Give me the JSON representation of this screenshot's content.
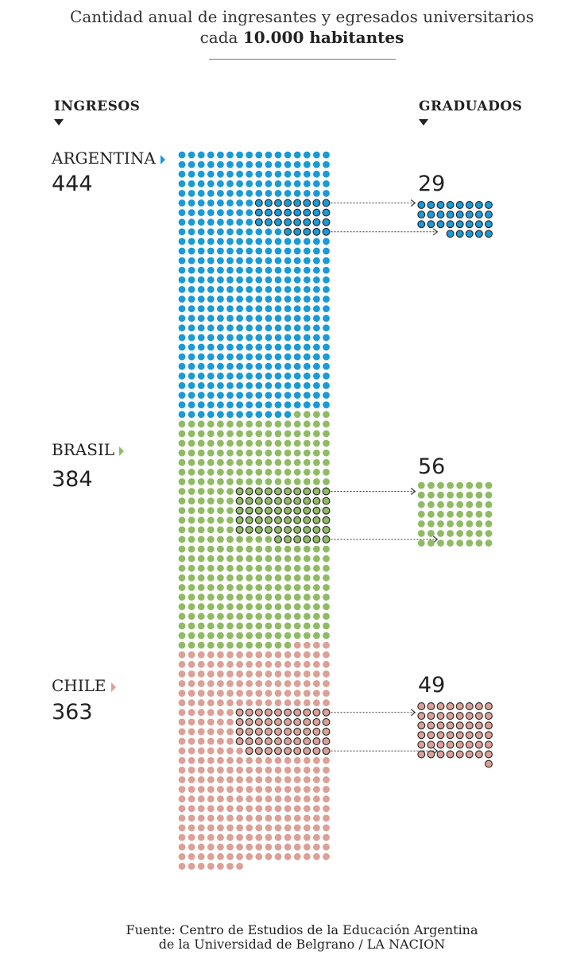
{
  "title": {
    "line1": "Cantidad anual de ingresantes y egresados universitarios",
    "line2_prefix": "cada ",
    "line2_bold": "10.000 habitantes"
  },
  "headers": {
    "ingresos": "INGRESOS",
    "graduados": "GRADUADOS"
  },
  "source": {
    "line1": "Fuente: Centro de Estudios de la Educación Argentina",
    "line2": "de la Universidad de Belgrano / LA NACION"
  },
  "colors": {
    "argentina": "#1a9ad6",
    "brasil": "#8fbb64",
    "chile": "#dba096",
    "outline": "#222222",
    "arrow": "#333333"
  },
  "chart_data": {
    "type": "dot-matrix",
    "unit": "1 dot = 1 student per 10,000 inhabitants",
    "series": [
      {
        "name": "ARGENTINA",
        "ingresos": 444,
        "graduados": 29,
        "color": "#1a9ad6"
      },
      {
        "name": "BRASIL",
        "ingresos": 384,
        "graduados": 56,
        "color": "#8fbb64"
      },
      {
        "name": "CHILE",
        "ingresos": 363,
        "graduados": 49,
        "color": "#dba096"
      }
    ]
  }
}
